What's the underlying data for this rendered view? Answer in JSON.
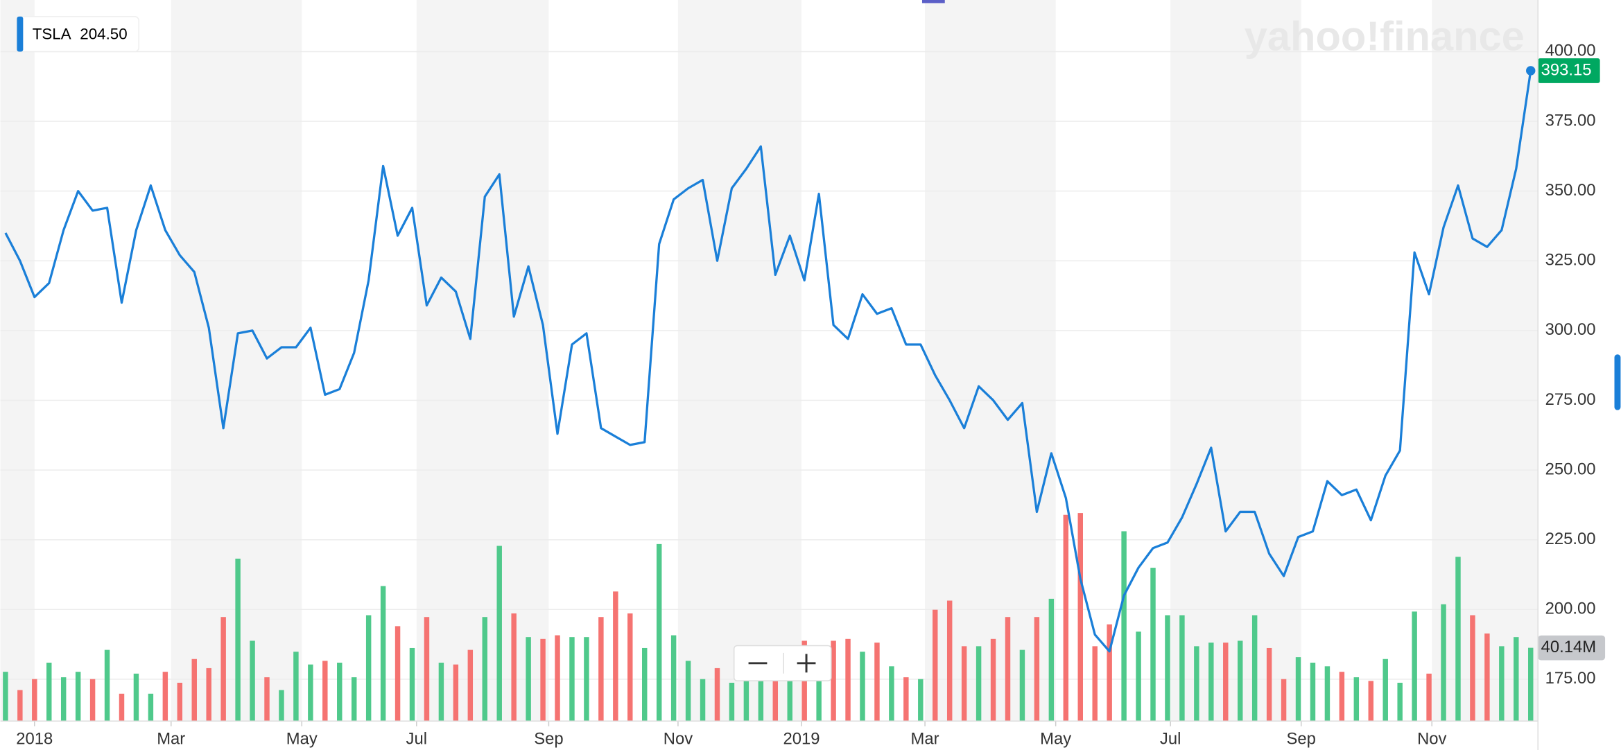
{
  "chart_data": {
    "type": "line",
    "symbol": "TSLA",
    "legend_value": {
      "value": 204.5,
      "label": "204.50"
    },
    "watermark": "yahoo!finance",
    "current_price": 393.15,
    "color": "#1a7fd8",
    "series": [
      {
        "name": "TSLA",
        "color": "#1a7fd8",
        "values": [
          335,
          325,
          312,
          317,
          336,
          350,
          343,
          344,
          310,
          336,
          352,
          336,
          327,
          321,
          301,
          265,
          299,
          300,
          290,
          294,
          294,
          301,
          277,
          279,
          292,
          318,
          359,
          334,
          344,
          309,
          319,
          314,
          297,
          348,
          356,
          305,
          323,
          302,
          263,
          295,
          299,
          265,
          262,
          259,
          260,
          331,
          347,
          351,
          354,
          325,
          351,
          358,
          366,
          320,
          334,
          318,
          349,
          302,
          297,
          313,
          306,
          308,
          295,
          295,
          284,
          275,
          265,
          280,
          275,
          268,
          274,
          235,
          256,
          240,
          211,
          191,
          185,
          205,
          215,
          222,
          224,
          233,
          245,
          258,
          228,
          235,
          235,
          220,
          212,
          226,
          228,
          246,
          241,
          243,
          232,
          248,
          257,
          328,
          313,
          337,
          352,
          333,
          330,
          336,
          358,
          393.15
        ]
      }
    ],
    "volume": {
      "up_color": "#4fc98b",
      "down_color": "#f57371",
      "lim": [
        0,
        120
      ],
      "values": [
        27,
        17,
        23,
        32,
        24,
        27,
        23,
        39,
        15,
        26,
        15,
        27,
        21,
        34,
        29,
        57,
        89,
        44,
        24,
        17,
        38,
        31,
        33,
        32,
        24,
        58,
        74,
        52,
        40,
        57,
        32,
        31,
        39,
        57,
        96,
        59,
        46,
        45,
        47,
        46,
        46,
        57,
        71,
        59,
        40,
        97,
        47,
        33,
        23,
        29,
        21,
        24,
        31,
        36,
        38,
        44,
        31,
        44,
        45,
        38,
        43,
        30,
        24,
        23,
        61,
        66,
        41,
        41,
        45,
        57,
        39,
        57,
        67,
        113,
        114,
        41,
        53,
        104,
        49,
        84,
        58,
        58,
        41,
        43,
        43,
        44,
        58,
        40,
        23,
        35,
        32,
        30,
        27,
        24,
        22,
        34,
        21,
        60,
        26,
        64,
        90,
        58,
        48,
        41,
        46,
        40.14
      ],
      "current": {
        "value": 40.14,
        "label": "40.14M"
      }
    },
    "xlim": [
      -0.35,
      105.5
    ],
    "xticks": [
      {
        "value": 2.0,
        "label": "2018"
      },
      {
        "value": 11.4,
        "label": "Mar"
      },
      {
        "value": 20.4,
        "label": "May"
      },
      {
        "value": 28.3,
        "label": "Jul"
      },
      {
        "value": 37.4,
        "label": "Sep"
      },
      {
        "value": 46.3,
        "label": "Nov"
      },
      {
        "value": 54.8,
        "label": "2019"
      },
      {
        "value": 63.3,
        "label": "Mar"
      },
      {
        "value": 72.3,
        "label": "May"
      },
      {
        "value": 80.2,
        "label": "Jul"
      },
      {
        "value": 89.2,
        "label": "Sep"
      },
      {
        "value": 98.2,
        "label": "Nov"
      }
    ],
    "ylim": [
      160,
      418.5
    ],
    "yticks": [
      {
        "value": 175,
        "label": "175.00"
      },
      {
        "value": 200,
        "label": "200.00"
      },
      {
        "value": 225,
        "label": "225.00"
      },
      {
        "value": 250,
        "label": "250.00"
      },
      {
        "value": 275,
        "label": "275.00"
      },
      {
        "value": 300,
        "label": "300.00"
      },
      {
        "value": 325,
        "label": "325.00"
      },
      {
        "value": 350,
        "label": "350.00"
      },
      {
        "value": 375,
        "label": "375.00"
      },
      {
        "value": 400,
        "label": "400.00"
      }
    ],
    "grid": true
  }
}
